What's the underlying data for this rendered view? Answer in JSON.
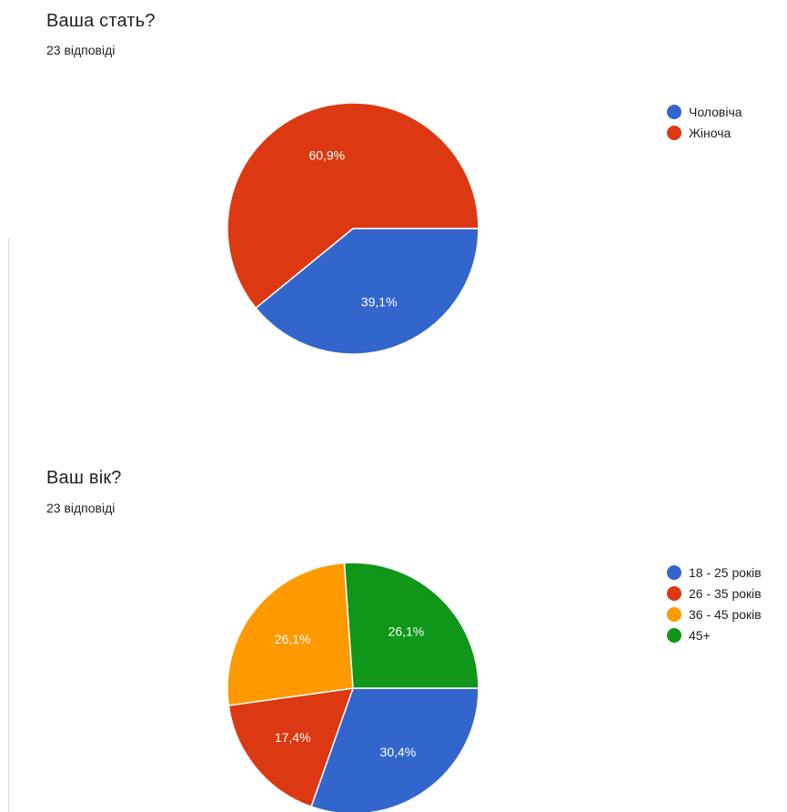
{
  "chart_data": [
    {
      "type": "pie",
      "title": "Ваша стать?",
      "subtitle": "23 відповіді",
      "categories": [
        "Чоловіча",
        "Жіноча"
      ],
      "values": [
        39.1,
        60.9
      ],
      "labels": [
        "39,1%",
        "60,9%"
      ],
      "colors": [
        "#3366cc",
        "#dc3912"
      ],
      "legend": "right"
    },
    {
      "type": "pie",
      "title": "Ваш вік?",
      "subtitle": "23 відповіді",
      "categories": [
        "18 - 25 років",
        "26 - 35 років",
        "36 - 45 років",
        "45+"
      ],
      "values": [
        30.4,
        17.4,
        26.1,
        26.1
      ],
      "labels": [
        "30,4%",
        "17,4%",
        "26,1%",
        "26,1%"
      ],
      "colors": [
        "#3366cc",
        "#dc3912",
        "#ff9900",
        "#109618"
      ],
      "legend": "right"
    }
  ]
}
